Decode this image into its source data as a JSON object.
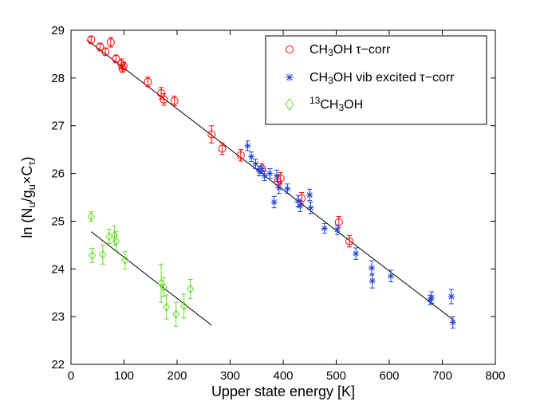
{
  "chart_data": {
    "type": "scatter",
    "xlabel": "Upper state energy [K]",
    "ylabel": {
      "prefix": "ln  (N",
      "s1": "u",
      "mid": "/g",
      "s2": "u",
      "times": "×C",
      "s3": "τ",
      "suffix": ")"
    },
    "xlim": [
      0,
      800
    ],
    "ylim": [
      22,
      29
    ],
    "xticks": [
      "0",
      "100",
      "200",
      "300",
      "400",
      "500",
      "600",
      "700",
      "800"
    ],
    "yticks": [
      "22",
      "23",
      "24",
      "25",
      "26",
      "27",
      "28",
      "29"
    ],
    "legend_position": "top-right",
    "series": [
      {
        "name": {
          "a": "CH",
          "sub": "3",
          "b": "OH τ−corr"
        },
        "marker": "circle",
        "color": "#ff0000",
        "points": [
          [
            38,
            28.8,
            0.08
          ],
          [
            55,
            28.65,
            0.08
          ],
          [
            65,
            28.55,
            0.08
          ],
          [
            75,
            28.75,
            0.1
          ],
          [
            85,
            28.4,
            0.08
          ],
          [
            95,
            28.3,
            0.1
          ],
          [
            97,
            28.2,
            0.08
          ],
          [
            99,
            28.25,
            0.08
          ],
          [
            145,
            27.92,
            0.1
          ],
          [
            170,
            27.68,
            0.12
          ],
          [
            175,
            27.55,
            0.12
          ],
          [
            195,
            27.52,
            0.1
          ],
          [
            265,
            26.82,
            0.18
          ],
          [
            285,
            26.52,
            0.12
          ],
          [
            320,
            26.38,
            0.12
          ],
          [
            360,
            26.1,
            0.1
          ],
          [
            390,
            25.82,
            0.12
          ],
          [
            395,
            25.9,
            0.12
          ],
          [
            435,
            25.48,
            0.12
          ],
          [
            505,
            24.98,
            0.12
          ],
          [
            525,
            24.58,
            0.12
          ]
        ]
      },
      {
        "name": {
          "a": "CH",
          "sub": "3",
          "b": "OH vib excited τ−corr"
        },
        "marker": "star",
        "color": "#1f3fd6",
        "points": [
          [
            333,
            26.58,
            0.1
          ],
          [
            340,
            26.35,
            0.1
          ],
          [
            348,
            26.2,
            0.1
          ],
          [
            355,
            26.05,
            0.1
          ],
          [
            360,
            26.1,
            0.1
          ],
          [
            365,
            25.95,
            0.1
          ],
          [
            375,
            26.0,
            0.1
          ],
          [
            383,
            25.4,
            0.12
          ],
          [
            388,
            25.95,
            0.12
          ],
          [
            392,
            25.7,
            0.12
          ],
          [
            408,
            25.68,
            0.1
          ],
          [
            428,
            25.42,
            0.12
          ],
          [
            432,
            25.32,
            0.12
          ],
          [
            450,
            25.55,
            0.12
          ],
          [
            452,
            25.28,
            0.12
          ],
          [
            478,
            24.85,
            0.1
          ],
          [
            502,
            24.82,
            0.1
          ],
          [
            537,
            24.32,
            0.12
          ],
          [
            567,
            24.02,
            0.15
          ],
          [
            568,
            23.75,
            0.15
          ],
          [
            603,
            23.85,
            0.12
          ],
          [
            677,
            23.35,
            0.1
          ],
          [
            680,
            23.4,
            0.12
          ],
          [
            717,
            23.42,
            0.15
          ],
          [
            720,
            22.88,
            0.12
          ]
        ]
      },
      {
        "name": {
          "sup": "13",
          "a": "CH",
          "sub": "3",
          "b": "OH"
        },
        "marker": "diamond",
        "color": "#66dd22",
        "points": [
          [
            38,
            25.1,
            0.1
          ],
          [
            40,
            24.28,
            0.15
          ],
          [
            60,
            24.3,
            0.2
          ],
          [
            72,
            24.68,
            0.15
          ],
          [
            82,
            24.7,
            0.2
          ],
          [
            85,
            24.58,
            0.2
          ],
          [
            102,
            24.18,
            0.18
          ],
          [
            170,
            23.7,
            0.4
          ],
          [
            175,
            23.62,
            0.2
          ],
          [
            180,
            23.2,
            0.25
          ],
          [
            198,
            23.05,
            0.25
          ],
          [
            213,
            23.22,
            0.25
          ],
          [
            225,
            23.58,
            0.2
          ]
        ]
      }
    ],
    "fit_lines": [
      {
        "x": [
          30,
          722
        ],
        "y": [
          28.8,
          22.92
        ]
      },
      {
        "x": [
          38,
          265
        ],
        "y": [
          24.78,
          22.82
        ]
      }
    ]
  }
}
